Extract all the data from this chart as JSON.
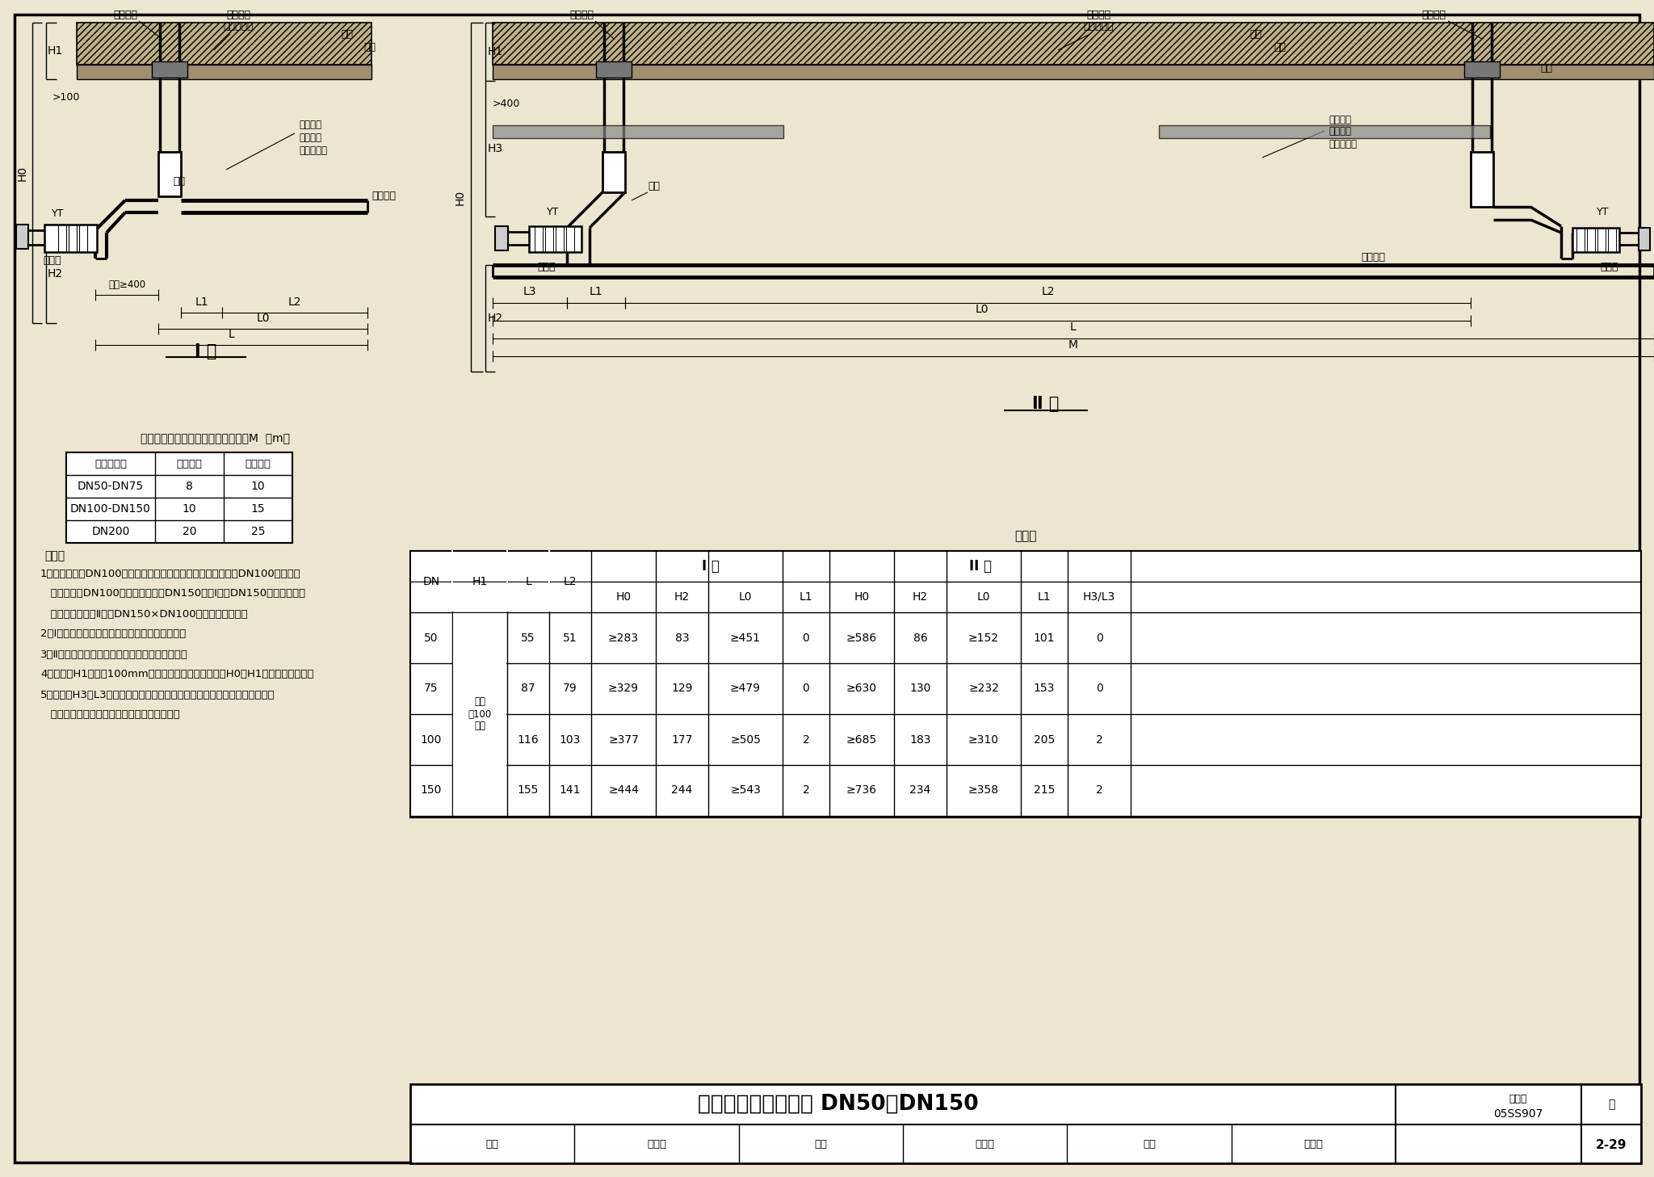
{
  "title": "楼板下清扫口安装图 DN50～DN150",
  "atlas_no": "05SS907",
  "page": "2-29",
  "bg_color": "#ece6d0",
  "dim_table_title": "相邻两个清扫口之间的最大水平距离M  （m）",
  "dim_table_headers": [
    "横干管管径",
    "生活污水",
    "生活废水"
  ],
  "dim_table_rows": [
    [
      "DN50-DN75",
      "8",
      "10"
    ],
    [
      "DN100-DN150",
      "10",
      "15"
    ],
    [
      "DN200",
      "20",
      "25"
    ]
  ],
  "size_table_title": "尺寸表",
  "size_table_type1": "I 型",
  "size_table_type2": "II 型",
  "size_col_labels": [
    "DN",
    "H1",
    "L",
    "L2",
    "H0",
    "H2",
    "L0",
    "L1",
    "H0",
    "H2",
    "L0",
    "L1",
    "H3/L3"
  ],
  "size_note": "本图\n按100\n考虑",
  "size_rows": [
    [
      "50",
      "55",
      "51",
      "≥283",
      "83",
      "≥451",
      "0",
      "≥586",
      "86",
      "≥152",
      "101",
      "0"
    ],
    [
      "75",
      "87",
      "79",
      "≥329",
      "129",
      "≥479",
      "0",
      "≥630",
      "130",
      "≥232",
      "153",
      "0"
    ],
    [
      "100",
      "116",
      "103",
      "≥377",
      "177",
      "≥505",
      "2",
      "≥685",
      "183",
      "≥310",
      "205",
      "2"
    ],
    [
      "150",
      "155",
      "141",
      "≥444",
      "244",
      "≥543",
      "2",
      "≥736",
      "234",
      "≥358",
      "215",
      "2"
    ]
  ],
  "note_lines": [
    "说明：",
    "1、排水管径＜DN100的，清扫口规格同排水管径；排水管径＞DN100的，清扫",
    "   口规格可取DN100。当排水管径为DN150时，Ⅰ型用DN150顺水三通加异",
    "   径管接清扫口，Ⅱ型用DN150×DN100斜三通接清扫口。",
    "2、Ⅰ型适用于清扫口设置在排水横管槽端的场所。",
    "3、Ⅱ型适用于清扫口设置在排水横管中间的场所。",
    "4、本图中H1尺寸按100mm考虑，实际情况如有不同则H0、H1尺寸应相应调整。",
    "5、本图中H3和L3尺寸系根据福建省亚通塑胶有限公司提供的技术资料编制，",
    "   若选用其他厂家产品则相关数据须相应调整。"
  ],
  "footer_items": [
    {
      "label": "审核",
      "value": "冯旭东"
    },
    {
      "label": "校对",
      "value": "马信国"
    },
    {
      "label": "设计",
      "value": "杨海键"
    }
  ]
}
